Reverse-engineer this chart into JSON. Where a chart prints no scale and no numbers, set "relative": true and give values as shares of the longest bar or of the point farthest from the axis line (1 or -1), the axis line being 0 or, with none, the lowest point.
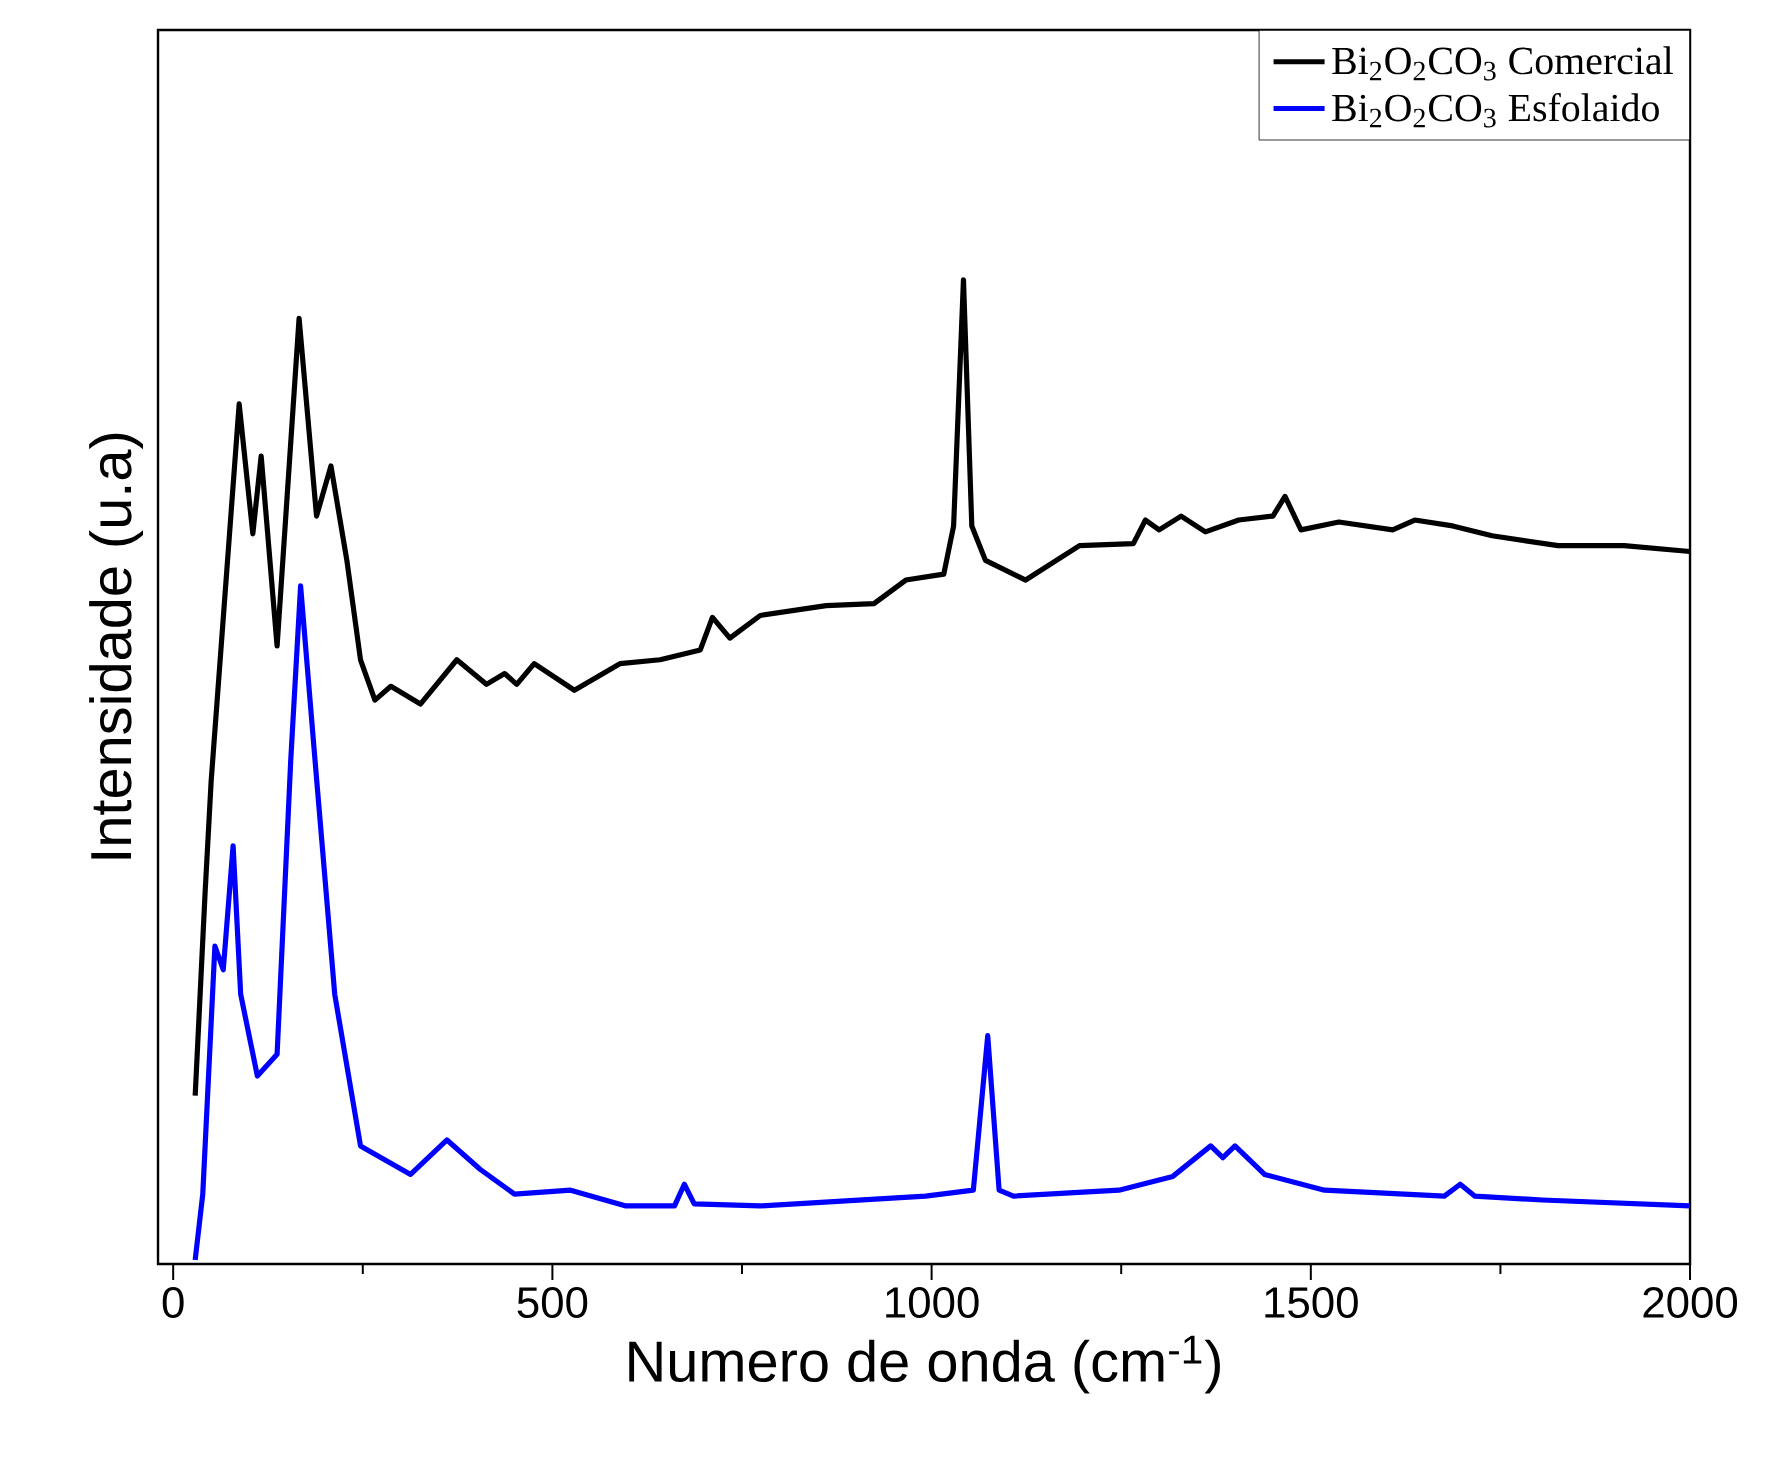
{
  "chart_data": {
    "type": "line",
    "xlabel": "Numero de onda (cm$^{-1}$)",
    "ylabel": "Intensidade (u.a)",
    "relative": true,
    "xlim": [
      -20,
      2000
    ],
    "xticks": [
      0,
      500,
      1000,
      1500,
      2000
    ],
    "legend": "top right",
    "line_style": "solid",
    "marker": "none",
    "series": [
      {
        "name": "Bi$_{2}$O$_{2}$CO$_{3}$ Comercial",
        "color": "#000000",
        "x": [
          29,
          42,
          50,
          87,
          105,
          116,
          137,
          166,
          189,
          208,
          229,
          247,
          266,
          287,
          326,
          374,
          413,
          437,
          453,
          476,
          529,
          589,
          642,
          695,
          711,
          734,
          774,
          861,
          924,
          966,
          1016,
          1029,
          1042,
          1053,
          1071,
          1124,
          1195,
          1266,
          1282,
          1300,
          1329,
          1361,
          1405,
          1450,
          1466,
          1487,
          1537,
          1608,
          1637,
          1687,
          1739,
          1826,
          1913,
          2000
        ],
        "values": [
          0.171,
          0.376,
          0.49,
          0.874,
          0.742,
          0.821,
          0.628,
          0.961,
          0.76,
          0.811,
          0.715,
          0.614,
          0.573,
          0.587,
          0.569,
          0.614,
          0.589,
          0.6,
          0.589,
          0.61,
          0.583,
          0.61,
          0.614,
          0.624,
          0.657,
          0.636,
          0.659,
          0.669,
          0.671,
          0.695,
          0.701,
          0.75,
          1,
          0.75,
          0.715,
          0.695,
          0.73,
          0.732,
          0.756,
          0.746,
          0.76,
          0.744,
          0.756,
          0.76,
          0.78,
          0.746,
          0.754,
          0.746,
          0.756,
          0.75,
          0.74,
          0.73,
          0.73,
          0.724
        ]
      },
      {
        "name": "Bi$_{2}$O$_{2}$CO$_{3}$ Esfolaido",
        "color": "#0000ff",
        "x": [
          29,
          39,
          55,
          66,
          79,
          89,
          111,
          137,
          155,
          168,
          187,
          213,
          247,
          313,
          361,
          405,
          450,
          524,
          597,
          661,
          674,
          687,
          774,
          992,
          1055,
          1074,
          1089,
          1108,
          1247,
          1318,
          1368,
          1384,
          1400,
          1439,
          1518,
          1676,
          1697,
          1716,
          1805,
          2000
        ],
        "values": [
          0.004,
          0.071,
          0.323,
          0.299,
          0.425,
          0.274,
          0.191,
          0.213,
          0.512,
          0.689,
          0.512,
          0.274,
          0.12,
          0.091,
          0.126,
          0.096,
          0.071,
          0.075,
          0.059,
          0.059,
          0.081,
          0.061,
          0.059,
          0.069,
          0.075,
          0.232,
          0.075,
          0.069,
          0.075,
          0.089,
          0.12,
          0.108,
          0.12,
          0.091,
          0.075,
          0.069,
          0.081,
          0.069,
          0.065,
          0.059
        ]
      }
    ]
  }
}
